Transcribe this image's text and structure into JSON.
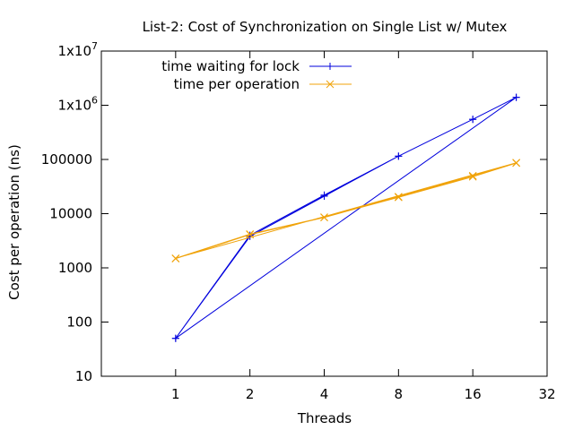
{
  "chart_data": {
    "type": "line",
    "title": "List-2: Cost of Synchronization on Single List w/ Mutex",
    "xlabel": "Threads",
    "ylabel": "Cost per operation (ns)",
    "x_scale": "log2",
    "y_scale": "log10",
    "xlim": [
      0.5,
      32
    ],
    "ylim": [
      10,
      10000000
    ],
    "x_ticks": [
      1,
      2,
      4,
      8,
      16,
      32
    ],
    "x_tick_labels": [
      "1",
      "2",
      "4",
      "8",
      "16",
      "32"
    ],
    "y_ticks": [
      10,
      100,
      1000,
      10000,
      100000,
      1000000,
      10000000
    ],
    "y_tick_labels": [
      {
        "base": "10",
        "sup": ""
      },
      {
        "base": "100",
        "sup": ""
      },
      {
        "base": "1000",
        "sup": ""
      },
      {
        "base": "10000",
        "sup": ""
      },
      {
        "base": "100000",
        "sup": ""
      },
      {
        "base": "1x10",
        "sup": "6"
      },
      {
        "base": "1x10",
        "sup": "7"
      }
    ],
    "grid": false,
    "legend_position": "top-left",
    "series": [
      {
        "name": "time waiting for lock",
        "color": "#0000dd",
        "marker": "plus",
        "points": [
          [
            1,
            50
          ],
          [
            2,
            3800
          ],
          [
            4,
            21000
          ],
          [
            8,
            115000
          ],
          [
            16,
            550000
          ],
          [
            24,
            1400000
          ],
          [
            1,
            50
          ],
          [
            2,
            4000
          ],
          [
            4,
            22000
          ],
          [
            8,
            115000
          ],
          [
            16,
            550000
          ],
          [
            24,
            1400000
          ]
        ]
      },
      {
        "name": "time per operation",
        "color": "#f0a30a",
        "marker": "cross",
        "points": [
          [
            1,
            1480
          ],
          [
            2,
            4100
          ],
          [
            4,
            8500
          ],
          [
            8,
            20500
          ],
          [
            16,
            50000
          ],
          [
            24,
            87000
          ],
          [
            1,
            1500
          ],
          [
            2,
            4200
          ],
          [
            4,
            8600
          ],
          [
            8,
            20000
          ],
          [
            16,
            48000
          ],
          [
            24,
            86000
          ]
        ]
      }
    ]
  }
}
